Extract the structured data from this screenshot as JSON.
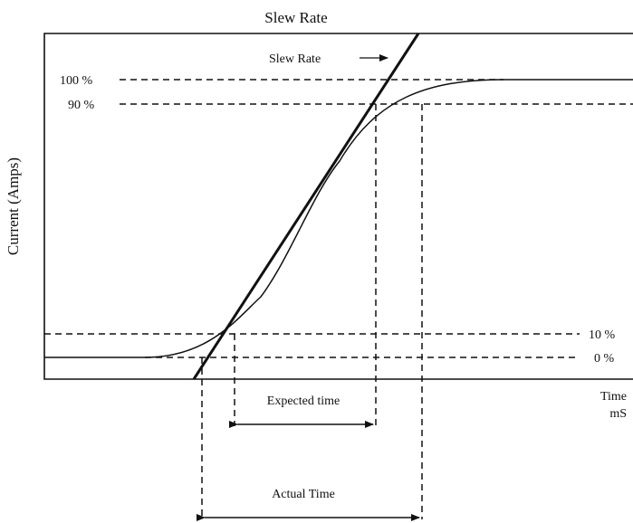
{
  "title": "Slew Rate",
  "y_axis_label": "Current (Amps)",
  "x_axis_label_line1": "Time",
  "x_axis_label_line2": "mS",
  "slew_rate_label": "Slew Rate",
  "levels": {
    "level_100": "100 %",
    "level_90": "90 %",
    "level_10": "10 %",
    "level_0": "0 %"
  },
  "expected_time_label": "Expected time",
  "actual_time_label": "Actual Time",
  "colors": {
    "ink": "#111111",
    "background": "#ffffff"
  }
}
